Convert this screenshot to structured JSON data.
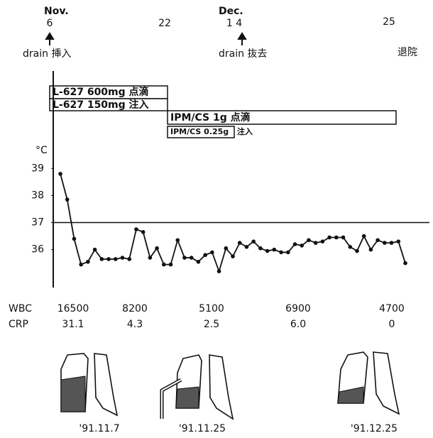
{
  "chart_data": {
    "type": "line",
    "y_label": "°C",
    "timeline": [
      {
        "label": "Nov.",
        "day": "6",
        "event": "drain 挿入"
      },
      {
        "day": "22"
      },
      {
        "label": "Dec.",
        "day": "1 4",
        "event": "drain 抜去"
      },
      {
        "day": "25",
        "event": "退院"
      }
    ],
    "treatments": [
      "L-627 600mg 点滴",
      "L-627 150mg 注入",
      "IPM/CS 1g 点滴",
      "IPM/CS 0.25g",
      "注入"
    ],
    "values": [
      38.8,
      37.85,
      36.4,
      35.45,
      35.55,
      36.0,
      35.65,
      35.65,
      35.65,
      35.7,
      35.65,
      36.75,
      36.65,
      35.7,
      36.05,
      35.45,
      35.45,
      36.35,
      35.7,
      35.7,
      35.55,
      35.8,
      35.9,
      35.2,
      36.05,
      35.75,
      36.25,
      36.1,
      36.3,
      36.05,
      35.95,
      36.0,
      35.9,
      35.9,
      36.2,
      36.15,
      36.35,
      36.25,
      36.3,
      36.45,
      36.45,
      36.45,
      36.1,
      35.95,
      36.5,
      36.0,
      36.35,
      36.25,
      36.25,
      36.3,
      35.5
    ],
    "color": "#111111",
    "ylim": [
      34.6,
      42.6
    ],
    "yticks": [
      36,
      37,
      38,
      39
    ],
    "reference_line": 37,
    "grid": false
  },
  "lab_table": {
    "rows": [
      {
        "label": "WBC",
        "values": [
          "16500",
          "8200",
          "5100",
          "6900",
          "4700"
        ]
      },
      {
        "label": "CRP",
        "values": [
          "31.1",
          "4.3",
          "2.5",
          "6.0",
          "0"
        ]
      }
    ]
  },
  "xray_dates": [
    "'91.11.7",
    "'91.11.25",
    "'91.12.25"
  ]
}
